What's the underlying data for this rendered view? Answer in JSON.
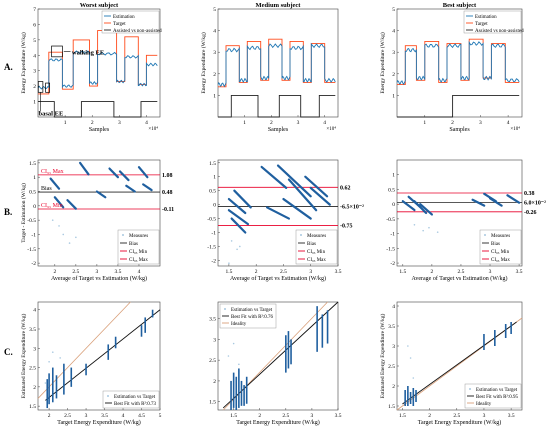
{
  "colors": {
    "estimation": "#1f77b4",
    "target": "#ff4a1a",
    "assisted": "#222222",
    "measures": "#a8c8e0",
    "bias": "#222222",
    "ci": "#e8002a",
    "fit_line": "#111111",
    "ideality": "#d9a07a",
    "scatter": "#1f5f9f"
  },
  "annotations": {
    "walking_ee": "walking EE",
    "basal_ee": "basal EE"
  },
  "row_labels": [
    "A.",
    "B.",
    "C."
  ],
  "chart_data": [
    {
      "type": "line",
      "panel": "A",
      "col": 0,
      "title": "Worst subject",
      "xlabel": "Samples",
      "ylabel": "Energy Expenditure (W/kg)",
      "xlim": [
        0,
        45000
      ],
      "ylim": [
        0,
        7
      ],
      "xticks": [
        1,
        2,
        3,
        4
      ],
      "xticks_exponent": "×10⁴",
      "yticks": [
        1,
        2,
        3,
        4,
        5,
        6,
        7
      ],
      "legend": [
        "Estimation",
        "Target",
        "Assisted vs non-assisted"
      ],
      "legend_position": "top-right",
      "target_levels": [
        [
          0,
          4000,
          1.5
        ],
        [
          4000,
          9000,
          4.2
        ],
        [
          9000,
          13000,
          1.8
        ],
        [
          13000,
          19000,
          5.0
        ],
        [
          19000,
          22000,
          2.0
        ],
        [
          22000,
          29000,
          5.6
        ],
        [
          29000,
          32000,
          2.3
        ],
        [
          32000,
          37000,
          5.2
        ],
        [
          37000,
          40000,
          2.1
        ],
        [
          40000,
          44000,
          4.0
        ]
      ],
      "estimation_levels": [
        [
          0,
          4000,
          1.9
        ],
        [
          4000,
          9000,
          3.7
        ],
        [
          9000,
          13000,
          2.0
        ],
        [
          13000,
          19000,
          4.2
        ],
        [
          19000,
          22000,
          2.2
        ],
        [
          22000,
          29000,
          4.1
        ],
        [
          29000,
          32000,
          2.3
        ],
        [
          32000,
          37000,
          3.9
        ],
        [
          37000,
          40000,
          2.1
        ],
        [
          40000,
          44000,
          3.4
        ]
      ],
      "assisted": [
        [
          0,
          1
        ],
        [
          6000,
          1
        ],
        [
          6000,
          0
        ],
        [
          16000,
          0
        ],
        [
          16000,
          1
        ],
        [
          28000,
          1
        ],
        [
          28000,
          0
        ],
        [
          38000,
          0
        ],
        [
          38000,
          1
        ],
        [
          44000,
          1
        ]
      ]
    },
    {
      "type": "line",
      "panel": "A",
      "col": 1,
      "title": "Medium subject",
      "xlabel": "Samples",
      "ylabel": "Energy Expenditure (W/kg)",
      "xlim": [
        0,
        45000
      ],
      "ylim": [
        0,
        5
      ],
      "xticks": [
        1,
        2,
        3,
        4
      ],
      "xticks_exponent": "×10⁴",
      "yticks": [
        1,
        2,
        3,
        4,
        5
      ],
      "legend": [],
      "target_levels": [
        [
          0,
          3000,
          1.4
        ],
        [
          3000,
          8000,
          3.3
        ],
        [
          8000,
          11000,
          1.6
        ],
        [
          11000,
          16000,
          3.5
        ],
        [
          16000,
          19000,
          1.7
        ],
        [
          19000,
          24000,
          3.6
        ],
        [
          24000,
          27000,
          1.7
        ],
        [
          27000,
          32000,
          3.5
        ],
        [
          32000,
          35000,
          1.6
        ],
        [
          35000,
          40000,
          3.4
        ],
        [
          40000,
          44000,
          1.6
        ]
      ],
      "estimation_levels": [
        [
          0,
          3000,
          1.5
        ],
        [
          3000,
          8000,
          3.1
        ],
        [
          8000,
          11000,
          1.7
        ],
        [
          11000,
          16000,
          3.2
        ],
        [
          16000,
          19000,
          1.8
        ],
        [
          19000,
          24000,
          3.3
        ],
        [
          24000,
          27000,
          1.8
        ],
        [
          27000,
          32000,
          3.2
        ],
        [
          32000,
          35000,
          1.7
        ],
        [
          35000,
          40000,
          3.3
        ],
        [
          40000,
          44000,
          1.7
        ]
      ],
      "assisted": [
        [
          0,
          0
        ],
        [
          5000,
          0
        ],
        [
          5000,
          1
        ],
        [
          15000,
          1
        ],
        [
          15000,
          0
        ],
        [
          23000,
          0
        ],
        [
          23000,
          1
        ],
        [
          31000,
          1
        ],
        [
          31000,
          0
        ],
        [
          38000,
          0
        ],
        [
          38000,
          1
        ],
        [
          44000,
          1
        ]
      ]
    },
    {
      "type": "line",
      "panel": "A",
      "col": 2,
      "title": "Best subject",
      "xlabel": "Samples",
      "ylabel": "Energy Expenditure (W/kg)",
      "xlim": [
        0,
        45000
      ],
      "ylim": [
        0,
        5
      ],
      "xticks": [
        1,
        2,
        3,
        4
      ],
      "xticks_exponent": "×10⁴",
      "yticks": [
        1,
        2,
        3,
        4,
        5
      ],
      "legend": [
        "Estimation",
        "Target",
        "Assisted vs non-assisted"
      ],
      "legend_position": "top-right",
      "target_levels": [
        [
          0,
          3000,
          1.5
        ],
        [
          3000,
          7000,
          3.3
        ],
        [
          7000,
          10000,
          1.7
        ],
        [
          10000,
          15000,
          3.5
        ],
        [
          15000,
          18000,
          1.6
        ],
        [
          18000,
          23000,
          3.4
        ],
        [
          23000,
          26000,
          1.7
        ],
        [
          26000,
          31000,
          3.6
        ],
        [
          31000,
          34000,
          1.8
        ],
        [
          34000,
          39000,
          3.4
        ],
        [
          39000,
          44000,
          1.6
        ]
      ],
      "estimation_levels": [
        [
          0,
          3000,
          1.6
        ],
        [
          3000,
          7000,
          3.1
        ],
        [
          7000,
          10000,
          1.8
        ],
        [
          10000,
          15000,
          3.3
        ],
        [
          15000,
          18000,
          1.7
        ],
        [
          18000,
          23000,
          3.3
        ],
        [
          23000,
          26000,
          1.8
        ],
        [
          26000,
          31000,
          3.4
        ],
        [
          31000,
          34000,
          1.8
        ],
        [
          34000,
          39000,
          3.3
        ],
        [
          39000,
          44000,
          1.7
        ]
      ],
      "assisted": [
        [
          0,
          0
        ],
        [
          20000,
          0
        ],
        [
          20000,
          1
        ],
        [
          44000,
          1
        ]
      ]
    },
    {
      "type": "scatter",
      "panel": "B",
      "col": 0,
      "xlabel": "Average of Target vs Estimation (W/kg)",
      "ylabel": "Target - Estimation (W/kg)",
      "xlim": [
        1.6,
        4.5
      ],
      "ylim": [
        -2.1,
        1.6
      ],
      "xticks": [
        2,
        2.5,
        3,
        3.5,
        4
      ],
      "yticks": [
        -2,
        -1.5,
        -1,
        -0.5,
        0,
        0.5,
        1,
        1.5
      ],
      "bias": 0.48,
      "ci_min": -0.11,
      "ci_max": 1.08,
      "bias_label": "0.48",
      "ci_min_label": "-0.11",
      "ci_max_label": "1.08",
      "inline_labels": {
        "ci_max": "CI₉₅ Max",
        "bias": "Bias",
        "ci_min": "CI₉₅ Min"
      },
      "legend": [
        "Measures",
        "Bias",
        "CI₉₅ Min",
        "CI₉₅ Max"
      ],
      "legend_position": "bottom-right",
      "clusters": [
        [
          1.9,
          0.95,
          2.1,
          0.6
        ],
        [
          2.0,
          0.3,
          2.2,
          -0.05
        ],
        [
          2.3,
          0.2,
          2.5,
          -0.1
        ],
        [
          2.6,
          1.5,
          2.8,
          1.1
        ],
        [
          3.0,
          0.5,
          3.2,
          0.3
        ],
        [
          3.3,
          1.3,
          3.5,
          1.0
        ],
        [
          3.55,
          1.2,
          3.75,
          0.9
        ],
        [
          3.7,
          0.7,
          3.9,
          0.5
        ],
        [
          4.0,
          1.35,
          4.2,
          1.0
        ],
        [
          4.1,
          0.75,
          4.3,
          0.55
        ]
      ],
      "outliers": [
        [
          2.2,
          -1.0
        ],
        [
          2.35,
          -1.3
        ],
        [
          1.95,
          -0.5
        ],
        [
          2.5,
          -1.1
        ],
        [
          2.1,
          -0.7
        ]
      ]
    },
    {
      "type": "scatter",
      "panel": "B",
      "col": 1,
      "xlabel": "Average of Target vs Estimation (W/kg)",
      "ylabel": "",
      "xlim": [
        1.3,
        3.5
      ],
      "ylim": [
        -2.2,
        1.6
      ],
      "xticks": [
        1.5,
        2,
        2.5,
        3,
        3.5
      ],
      "yticks": [
        -2,
        -1.5,
        -1,
        -0.5,
        0,
        0.5,
        1,
        1.5
      ],
      "bias": -0.065,
      "ci_min": -0.75,
      "ci_max": 0.62,
      "bias_label": "-6.5×10⁻²",
      "ci_min_label": "-0.75",
      "ci_max_label": "0.62",
      "legend": [
        "Measures",
        "Bias",
        "CI₉₅ Min",
        "CI₉₅ Max"
      ],
      "legend_position": "bottom-right",
      "clusters": [
        [
          1.5,
          0.2,
          1.8,
          -0.3
        ],
        [
          1.5,
          -0.2,
          1.85,
          -0.7
        ],
        [
          1.6,
          0.5,
          1.9,
          -0.1
        ],
        [
          1.55,
          -0.5,
          1.8,
          -1.0
        ],
        [
          2.1,
          1.35,
          2.55,
          0.6
        ],
        [
          2.4,
          1.4,
          3.0,
          0.3
        ],
        [
          2.6,
          0.9,
          3.1,
          -0.2
        ],
        [
          2.5,
          0.2,
          3.0,
          -0.5
        ],
        [
          2.9,
          1.0,
          3.3,
          0.3
        ],
        [
          3.0,
          0.6,
          3.35,
          0.0
        ],
        [
          2.2,
          -0.1,
          2.6,
          -0.5
        ]
      ],
      "outliers": [
        [
          1.55,
          -1.3
        ],
        [
          1.65,
          -1.6
        ],
        [
          1.5,
          -2.1
        ],
        [
          1.7,
          -1.5
        ]
      ]
    },
    {
      "type": "scatter",
      "panel": "B",
      "col": 2,
      "xlabel": "Average of Target vs Estimation (W/kg)",
      "ylabel": "",
      "xlim": [
        1.4,
        3.55
      ],
      "ylim": [
        -2.1,
        1.5
      ],
      "xticks": [
        1.5,
        2,
        2.5,
        3,
        3.5
      ],
      "yticks": [
        -2,
        -1.5,
        -1,
        -0.5,
        0,
        0.5,
        1
      ],
      "bias": 0.06,
      "ci_min": -0.26,
      "ci_max": 0.38,
      "bias_label": "6.0×10⁻²",
      "ci_min_label": "-0.26",
      "ci_max_label": "0.38",
      "legend": [
        "Measures",
        "Bias",
        "CI₉₅ Min",
        "CI₉₅ Max"
      ],
      "legend_position": "bottom-right",
      "clusters": [
        [
          1.5,
          0.1,
          1.7,
          -0.2
        ],
        [
          1.6,
          0.25,
          1.8,
          -0.1
        ],
        [
          1.7,
          0.1,
          1.9,
          -0.3
        ],
        [
          1.8,
          0.0,
          2.0,
          -0.35
        ],
        [
          2.7,
          0.15,
          2.9,
          -0.05
        ],
        [
          2.9,
          0.35,
          3.1,
          0.1
        ],
        [
          3.0,
          0.2,
          3.2,
          -0.05
        ],
        [
          3.3,
          0.3,
          3.5,
          0.05
        ]
      ],
      "outliers": [
        [
          1.7,
          -0.7
        ],
        [
          1.85,
          -0.9
        ],
        [
          2.1,
          -0.95
        ],
        [
          1.95,
          -0.8
        ]
      ]
    },
    {
      "type": "scatter",
      "panel": "C",
      "col": 0,
      "xlabel": "Target Energy Expenditure (W/kg)",
      "ylabel": "Estimated Energy Expenditure (W/kg)",
      "xlim": [
        1.7,
        5.0
      ],
      "ylim": [
        1.4,
        4.2
      ],
      "xticks": [
        2,
        2.5,
        3,
        3.5,
        4,
        4.5,
        5
      ],
      "yticks": [
        1.5,
        2,
        2.5,
        3,
        3.5,
        4
      ],
      "legend": [
        "Estimation vs Target",
        "Best Fit with R²:0.73"
      ],
      "legend_position": "bottom-right",
      "fit": [
        [
          1.9,
          1.65
        ],
        [
          5.0,
          4.0
        ]
      ],
      "ideality": [
        [
          1.7,
          1.7
        ],
        [
          4.2,
          4.2
        ]
      ],
      "bars": [
        [
          1.95,
          1.45,
          2.2
        ],
        [
          2.0,
          1.55,
          2.35
        ],
        [
          2.1,
          1.6,
          2.5
        ],
        [
          2.2,
          1.7,
          2.3
        ],
        [
          2.4,
          1.8,
          2.6
        ],
        [
          2.6,
          2.0,
          2.5
        ],
        [
          3.0,
          2.3,
          2.6
        ],
        [
          3.6,
          2.7,
          3.1
        ],
        [
          3.8,
          3.0,
          3.3
        ],
        [
          4.5,
          3.3,
          3.6
        ],
        [
          4.6,
          3.4,
          3.8
        ],
        [
          4.8,
          3.8,
          4.0
        ]
      ],
      "outliers": [
        [
          2.1,
          2.9
        ],
        [
          2.0,
          2.65
        ],
        [
          2.3,
          2.75
        ],
        [
          1.9,
          2.1
        ]
      ]
    },
    {
      "type": "scatter",
      "panel": "C",
      "col": 1,
      "xlabel": "Target Energy Expenditure (W/kg)",
      "ylabel": "",
      "xlim": [
        1.2,
        3.5
      ],
      "ylim": [
        1.3,
        3.9
      ],
      "xticks": [
        1.5,
        2,
        2.5,
        3,
        3.5
      ],
      "yticks": [
        1.5,
        2,
        2.5,
        3,
        3.5
      ],
      "legend": [
        "Estimation vs Target",
        "Best Fit with R²:0.76",
        "Ideality"
      ],
      "legend_position": "top-left",
      "fit": [
        [
          1.3,
          1.35
        ],
        [
          3.5,
          3.9
        ]
      ],
      "ideality": [
        [
          1.3,
          1.3
        ],
        [
          3.3,
          3.9
        ]
      ],
      "bars": [
        [
          1.45,
          1.3,
          2.0
        ],
        [
          1.5,
          1.35,
          2.2
        ],
        [
          1.55,
          1.3,
          2.1
        ],
        [
          1.6,
          1.35,
          2.3
        ],
        [
          1.65,
          1.4,
          2.0
        ],
        [
          1.7,
          1.4,
          1.9
        ],
        [
          1.75,
          1.45,
          2.1
        ],
        [
          2.5,
          2.2,
          3.1
        ],
        [
          2.55,
          2.3,
          3.2
        ],
        [
          2.6,
          2.4,
          3.0
        ],
        [
          3.1,
          2.7,
          3.8
        ],
        [
          3.2,
          2.8,
          3.6
        ],
        [
          3.3,
          2.9,
          3.7
        ]
      ],
      "outliers": [
        [
          1.4,
          2.6
        ],
        [
          1.5,
          2.9
        ],
        [
          1.6,
          2.4
        ]
      ]
    },
    {
      "type": "scatter",
      "panel": "C",
      "col": 2,
      "xlabel": "Target Energy Expenditure (W/kg)",
      "ylabel": "Estimated Energy Expenditure (W/kg)",
      "xlim": [
        1.4,
        3.7
      ],
      "ylim": [
        1.4,
        4.1
      ],
      "xticks": [
        1.5,
        2,
        2.5,
        3,
        3.5
      ],
      "yticks": [
        1.5,
        2,
        2.5,
        3,
        3.5,
        4
      ],
      "legend": [
        "Estimation vs Target",
        "Best Fit with R²:0.95",
        "Ideality"
      ],
      "legend_position": "bottom-right",
      "fit": [
        [
          1.5,
          1.55
        ],
        [
          3.6,
          3.6
        ]
      ],
      "ideality": [
        [
          1.4,
          1.4
        ],
        [
          3.7,
          3.7
        ]
      ],
      "bars": [
        [
          1.55,
          1.5,
          1.9
        ],
        [
          1.6,
          1.5,
          2.0
        ],
        [
          1.65,
          1.55,
          1.85
        ],
        [
          1.7,
          1.5,
          1.95
        ],
        [
          1.75,
          1.6,
          1.9
        ],
        [
          3.0,
          2.9,
          3.3
        ],
        [
          3.2,
          3.0,
          3.4
        ],
        [
          3.4,
          3.2,
          3.55
        ],
        [
          3.5,
          3.3,
          3.6
        ]
      ],
      "outliers": [
        [
          1.6,
          3.0
        ],
        [
          1.65,
          2.7
        ],
        [
          1.7,
          2.2
        ]
      ]
    }
  ]
}
